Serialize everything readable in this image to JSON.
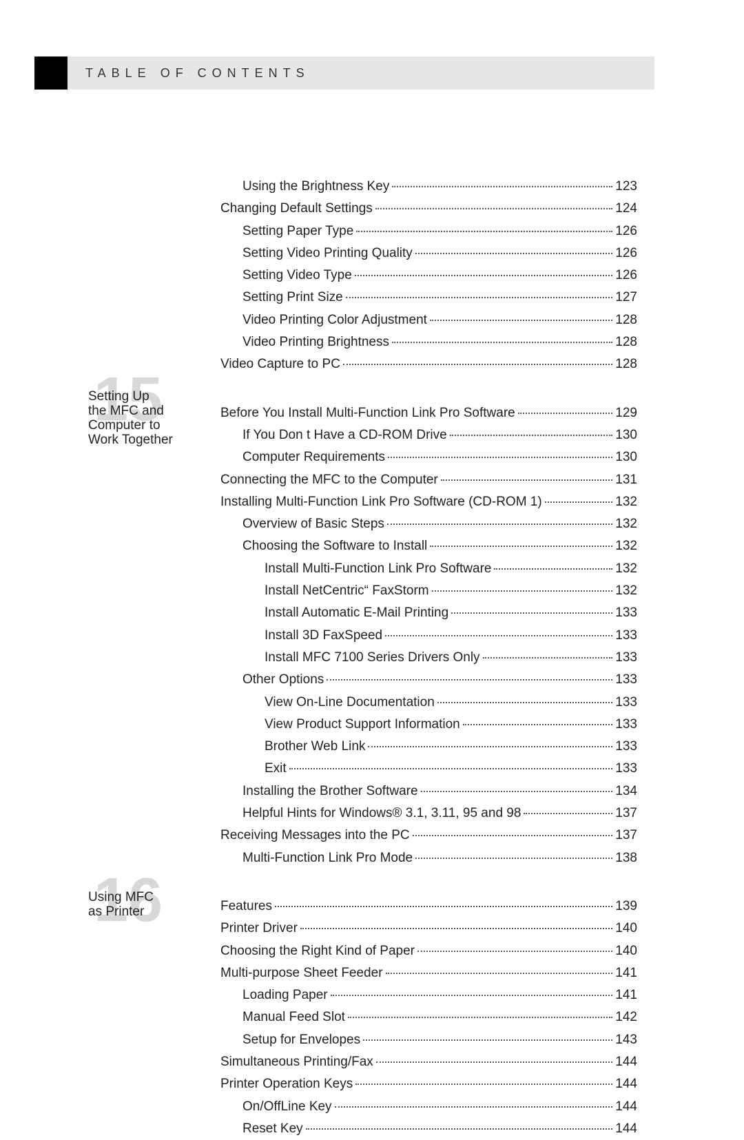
{
  "header": {
    "title": "TABLE OF CONTENTS"
  },
  "sections": [
    {
      "number": "15",
      "title_lines": [
        "Setting Up",
        "the MFC and",
        "Computer to",
        "Work Together"
      ]
    },
    {
      "number": "16",
      "title_lines": [
        "Using MFC",
        "as Printer"
      ]
    }
  ],
  "toc": [
    {
      "label": "Using the Brightness Key",
      "page": "123",
      "indent": 1
    },
    {
      "label": "Changing Default Settings",
      "page": "124",
      "indent": 0
    },
    {
      "label": "Setting Paper Type",
      "page": "126",
      "indent": 1
    },
    {
      "label": "Setting Video Printing Quality",
      "page": "126",
      "indent": 1
    },
    {
      "label": "Setting Video Type",
      "page": "126",
      "indent": 1
    },
    {
      "label": "Setting Print Size",
      "page": "127",
      "indent": 1
    },
    {
      "label": "Video Printing Color Adjustment",
      "page": "128",
      "indent": 1
    },
    {
      "label": "Video Printing Brightness",
      "page": "128",
      "indent": 1
    },
    {
      "label": "Video Capture to PC",
      "page": "128",
      "indent": 0
    },
    {
      "gap": true
    },
    {
      "label": "Before You Install Multi-Function Link Pro Software",
      "page": "129",
      "indent": 0
    },
    {
      "label": "If You Don t Have a CD-ROM Drive",
      "page": "130",
      "indent": 1
    },
    {
      "label": "Computer Requirements",
      "page": "130",
      "indent": 1
    },
    {
      "label": "Connecting the MFC to the Computer",
      "page": "131",
      "indent": 0
    },
    {
      "label": "Installing Multi-Function Link Pro Software (CD-ROM 1)",
      "page": "132",
      "indent": 0
    },
    {
      "label": "Overview of Basic Steps",
      "page": "132",
      "indent": 1
    },
    {
      "label": "Choosing the Software to Install",
      "page": "132",
      "indent": 1
    },
    {
      "label": "Install Multi-Function Link Pro Software",
      "page": "132",
      "indent": 2
    },
    {
      "label": "Install NetCentric“ FaxStorm",
      "page": "132",
      "indent": 2
    },
    {
      "label": "Install Automatic E-Mail Printing",
      "page": "133",
      "indent": 2
    },
    {
      "label": "Install 3D FaxSpeed",
      "page": "133",
      "indent": 2
    },
    {
      "label": "Install MFC 7100 Series Drivers Only",
      "page": "133",
      "indent": 2
    },
    {
      "label": "Other Options",
      "page": "133",
      "indent": 1
    },
    {
      "label": "View On-Line Documentation",
      "page": "133",
      "indent": 2
    },
    {
      "label": "View Product Support Information",
      "page": "133",
      "indent": 2
    },
    {
      "label": "Brother Web Link",
      "page": "133",
      "indent": 2
    },
    {
      "label": "Exit",
      "page": "133",
      "indent": 2
    },
    {
      "label": "Installing the Brother Software",
      "page": "134",
      "indent": 1
    },
    {
      "label": "Helpful Hints for Windows® 3.1, 3.11, 95 and 98",
      "page": "137",
      "indent": 1
    },
    {
      "label": "Receiving Messages into the PC",
      "page": "137",
      "indent": 0
    },
    {
      "label": "Multi-Function Link Pro Mode",
      "page": "138",
      "indent": 1
    },
    {
      "gap": true
    },
    {
      "label": "Features",
      "page": "139",
      "indent": 0
    },
    {
      "label": "Printer Driver",
      "page": "140",
      "indent": 0
    },
    {
      "label": "Choosing the Right Kind of Paper",
      "page": "140",
      "indent": 0
    },
    {
      "label": "Multi-purpose Sheet Feeder",
      "page": "141",
      "indent": 0
    },
    {
      "label": "Loading Paper",
      "page": "141",
      "indent": 1
    },
    {
      "label": "Manual Feed Slot",
      "page": "142",
      "indent": 1
    },
    {
      "label": "Setup for Envelopes",
      "page": "143",
      "indent": 1
    },
    {
      "label": "Simultaneous Printing/Fax",
      "page": "144",
      "indent": 0
    },
    {
      "label": "Printer Operation Keys",
      "page": "144",
      "indent": 0
    },
    {
      "label": "On/OffLine Key",
      "page": "144",
      "indent": 1
    },
    {
      "label": "Reset Key",
      "page": "144",
      "indent": 1
    }
  ]
}
